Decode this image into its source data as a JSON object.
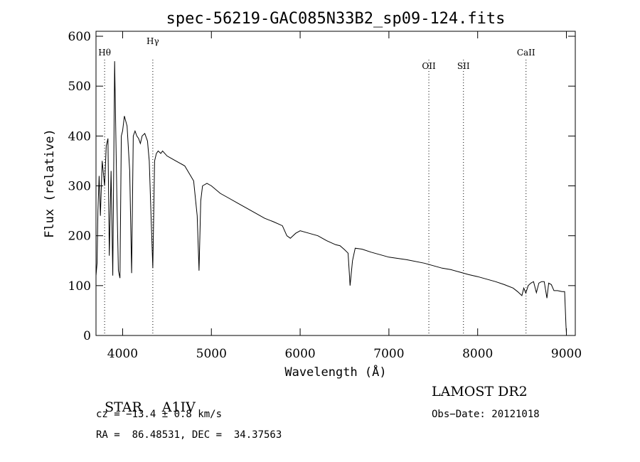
{
  "chart_data": {
    "type": "line",
    "title": "spec-56219-GAC085N33B2_sp09-124.fits",
    "xlabel": "Wavelength (Å)",
    "ylabel": "Flux (relative)",
    "xlim": [
      3700,
      9100
    ],
    "ylim": [
      0,
      610
    ],
    "xticks": [
      4000,
      5000,
      6000,
      7000,
      8000,
      9000
    ],
    "yticks": [
      0,
      100,
      200,
      300,
      400,
      500,
      600
    ],
    "grid": false,
    "line_markers": [
      {
        "label": "Hθ",
        "x": 3797
      },
      {
        "label": "Hγ",
        "x": 4340
      },
      {
        "label": "OII",
        "x": 7450
      },
      {
        "label": "SII",
        "x": 7840
      },
      {
        "label": "CaII",
        "x": 8545
      }
    ],
    "series": [
      {
        "x": [
          3700,
          3712,
          3722,
          3735,
          3750,
          3770,
          3797,
          3815,
          3835,
          3850,
          3870,
          3889,
          3910,
          3935,
          3952,
          3970,
          3985,
          4000,
          4020,
          4050,
          4080,
          4101,
          4120,
          4140,
          4160,
          4180,
          4200,
          4220,
          4250,
          4280,
          4300,
          4320,
          4340,
          4360,
          4380,
          4400,
          4430,
          4450,
          4500,
          4550,
          4600,
          4650,
          4700,
          4750,
          4800,
          4840,
          4861,
          4880,
          4900,
          4950,
          5000,
          5100,
          5200,
          5300,
          5400,
          5500,
          5600,
          5700,
          5800,
          5850,
          5890,
          5950,
          6000,
          6100,
          6200,
          6300,
          6400,
          6450,
          6500,
          6540,
          6563,
          6590,
          6620,
          6700,
          6800,
          6900,
          7000,
          7200,
          7400,
          7500,
          7600,
          7700,
          7800,
          7900,
          8000,
          8100,
          8200,
          8300,
          8400,
          8450,
          8498,
          8520,
          8542,
          8570,
          8600,
          8630,
          8662,
          8690,
          8720,
          8750,
          8780,
          8800,
          8830,
          8860,
          8900,
          8950,
          8980,
          8995,
          9000
        ],
        "values": [
          120,
          145,
          250,
          320,
          240,
          350,
          300,
          380,
          395,
          160,
          330,
          120,
          550,
          280,
          130,
          115,
          400,
          410,
          440,
          420,
          330,
          125,
          400,
          410,
          400,
          395,
          385,
          400,
          405,
          390,
          350,
          240,
          135,
          350,
          365,
          370,
          365,
          370,
          360,
          355,
          350,
          345,
          340,
          325,
          310,
          240,
          130,
          270,
          300,
          305,
          300,
          285,
          275,
          265,
          255,
          245,
          235,
          228,
          220,
          200,
          195,
          205,
          210,
          205,
          200,
          190,
          182,
          180,
          172,
          165,
          100,
          150,
          175,
          173,
          167,
          162,
          157,
          152,
          145,
          140,
          135,
          132,
          127,
          122,
          118,
          113,
          108,
          102,
          95,
          88,
          80,
          95,
          85,
          100,
          105,
          108,
          86,
          105,
          108,
          108,
          75,
          105,
          102,
          90,
          90,
          88,
          88,
          20,
          5
        ]
      }
    ]
  },
  "info": {
    "class_label": "STAR",
    "subclass": "A1IV",
    "survey": "LAMOST DR2",
    "cz": "cz = −13.4 ± 0.8 km/s",
    "obs_date": "Obs−Date: 20121018",
    "coords": "RA =  86.48531, DEC =  34.37563"
  }
}
